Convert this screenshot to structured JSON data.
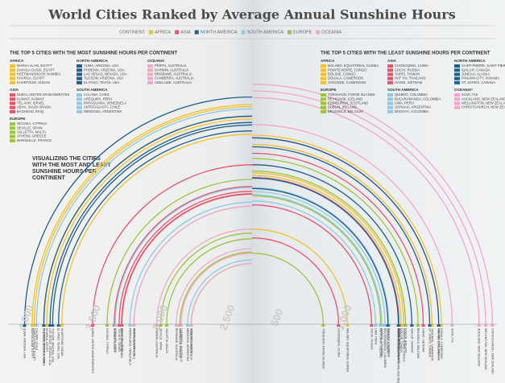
{
  "chart_data": {
    "type": "arc",
    "title": "World Cities Ranked by Average Annual Sunshine Hours",
    "legend_title": "CONTINENT",
    "legend": [
      {
        "name": "AFRICA",
        "color": "#f2c12e"
      },
      {
        "name": "ASIA",
        "color": "#e8536b"
      },
      {
        "name": "NORTH AMERICA",
        "color": "#1f5f8b"
      },
      {
        "name": "SOUTH AMERICA",
        "color": "#8ecae6"
      },
      {
        "name": "EUROPE",
        "color": "#9bc53d"
      },
      {
        "name": "OCEANIA",
        "color": "#f4a6c8"
      }
    ],
    "subtitle": "VISUALIZING THE CITIES WITH THE MOST AND LEAST SUNSHINE HOURS PER CONTINENT",
    "sections": [
      {
        "heading": "THE TOP 5 CITIES WITH THE MOST SUNSHINE HOURS PER CONTINENT",
        "side": "left",
        "xlim": [
          2320,
          4120
        ],
        "xticks": [
          {
            "value": 4000,
            "label": "4,000"
          },
          {
            "value": 3500,
            "label": "3,500"
          },
          {
            "value": 3000,
            "label": "3,000"
          },
          {
            "value": 2500,
            "label": "2,500"
          }
        ],
        "groups": [
          {
            "name": "AFRICA",
            "color": "#f2c12e",
            "cities": [
              "MARSA ALAM, EGYPT",
              "DAKHLA OASIS, EGYPT",
              "KEETMANSHOOP, NAMIBIA",
              "KHARGA, EGYPT",
              "KHARTOUM, SUDAN"
            ],
            "values": [
              3958,
              3943,
              3870,
              3850,
              3737
            ]
          },
          {
            "name": "ASIA",
            "color": "#e8536b",
            "cities": [
              "DUBAI, UNITED ARAB EMIRATES",
              "KUWAIT, KUWAIT",
              "TEL AVIV, ISRAEL",
              "ABHA, SAUDI ARABIA",
              "BAGHDAD, IRAQ"
            ],
            "values": [
              3509,
              3347,
              3311,
              3293,
              3290
            ]
          },
          {
            "name": "EUROPE",
            "color": "#9bc53d",
            "cities": [
              "NICOSIA, CYPRUS",
              "SEVILLE, SPAIN",
              "VALLETTA, MALTA",
              "ATHENS, GREECE",
              "MARSEILLE, FRANCE"
            ],
            "values": [
              3400,
              3000,
              2957,
              2773,
              2858
            ]
          },
          {
            "name": "NORTH AMERICA",
            "color": "#1f5f8b",
            "cities": [
              "YUMA, ARIZONA, USA",
              "PHOENIX, ARIZONA, USA",
              "LAS VEGAS, NEVADA, USA",
              "TUCSON, ARIZONA, USA",
              "EL PASO, TEXAS, USA"
            ],
            "values": [
              4015,
              3872,
              3825,
              3806,
              3762
            ]
          },
          {
            "name": "SOUTH AMERICA",
            "color": "#8ecae6",
            "cities": [
              "CALAMA, CHILE",
              "AREQUIPA, PERU",
              "PARAGUANA, VENEZUELA",
              "ANTOFAGASTA, CHILE",
              "MENDOZA, ARGENTINA"
            ],
            "values": [
              3926,
              3340,
              3230,
              3200,
              2800
            ]
          },
          {
            "name": "OCEANIA",
            "color": "#f4a6c8",
            "cities": [
              "PERTH, AUSTRALIA",
              "DARWIN, AUSTRALIA",
              "BRISBANE, AUSTRALIA",
              "CANBERRA, AUSTRALIA",
              "ADELAIDE, AUSTRALIA"
            ],
            "values": [
              3200,
              3030,
              2884,
              2849,
              2774
            ]
          }
        ]
      },
      {
        "heading": "THE TOP 5 CITIES WITH THE LEAST SUNSHINE HOURS PER CONTINENT",
        "side": "right",
        "xlim": [
          310,
          2110
        ],
        "xticks": [
          500,
          {
            "value": 1000,
            "label": "1,000"
          }
        ],
        "groups": [
          {
            "name": "AFRICA",
            "color": "#f2c12e",
            "cities": [
              "MALABO, EQUATORIAL GUINEA",
              "POINTE-NOIRE, CONGO",
              "DOLISIE, CONGO",
              "DOUALA, CAMEROON",
              "YAOUNDE, CAMEROON"
            ],
            "values": [
              1020,
              1440,
              1420,
              1720,
              1650
            ]
          },
          {
            "name": "EUROPE",
            "color": "#9bc53d",
            "cities": [
              "TÓRSHAVN, FAROE ISLANDS",
              "REYKJAVIK, ICELAND",
              "EDINBURGH, SCOTLAND",
              "DUBLIN, IRELAND",
              "BRUSSELS, BELGIUM"
            ],
            "values": [
              840,
              1268,
              1402,
              1453,
              1546
            ]
          },
          {
            "name": "ASIA",
            "color": "#e8536b",
            "cities": [
              "CHONGQING, CHINA",
              "SOCHI, RUSSIA",
              "TAIPEI, TAIWAN",
              "HAT YAI, THAILAND",
              "HANOI, VIETNAM"
            ],
            "values": [
              954,
              1200,
              1405,
              1700,
              1585
            ]
          },
          {
            "name": "SOUTH AMERICA",
            "color": "#8ecae6",
            "cities": [
              "QUIBDÓ, COLOMBIA",
              "BUCARAMANGA, COLOMBIA",
              "LIMA, PERU",
              "USHUAIA, ARGENTINA",
              "BOGOTÁ, COLOMBIA"
            ],
            "values": [
              1276,
              1300,
              1230,
              1400,
              1328
            ]
          },
          {
            "name": "NORTH AMERICA",
            "color": "#1f5f8b",
            "cities": [
              "SAINT-PIERRE, SAINT PIERRE AND MIQUELON",
              "IQALUIT, CANADA",
              "JUNEAU, ALASKA",
              "PANAMA CITY, PANAMA",
              "ST. JOHN'S, CANADA"
            ],
            "values": [
              1400,
              1500,
              1322,
              1700,
              1633
            ]
          },
          {
            "name": "OCEANIA*",
            "color": "#f4a6c8",
            "cities": [
              "SUVA, FIJI",
              "AUCKLAND, NEW ZEALAND",
              "WELLINGTON, NEW ZEALAND",
              "CHRISTCHURCH, NEW ZEALAND"
            ],
            "values": [
              1800,
              2000,
              2050,
              2100
            ]
          }
        ]
      }
    ]
  }
}
